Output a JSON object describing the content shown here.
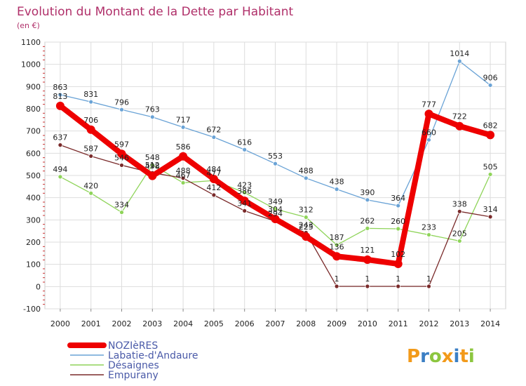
{
  "chart_data": {
    "type": "line",
    "title": "Evolution du Montant de la Dette par Habitant",
    "subtitle": "(en €)",
    "xlabel": "",
    "ylabel": "",
    "ylim": [
      -100,
      1100
    ],
    "yticks": [
      -100,
      0,
      100,
      200,
      300,
      400,
      500,
      600,
      700,
      800,
      900,
      1000,
      1100
    ],
    "categories": [
      "2000",
      "2001",
      "2002",
      "2003",
      "2004",
      "2005",
      "2006",
      "2007",
      "2008",
      "2009",
      "2010",
      "2011",
      "2012",
      "2013",
      "2014"
    ],
    "grid": true,
    "legend_position": "bottom-left",
    "series": [
      {
        "name": "Labatie-d'Andaure",
        "color": "#6aa3d6",
        "values": [
          863,
          831,
          796,
          763,
          717,
          672,
          616,
          553,
          488,
          438,
          390,
          364,
          660,
          1014,
          906
        ]
      },
      {
        "name": "Désaignes",
        "color": "#8fd45a",
        "values": [
          494,
          420,
          334,
          548,
          467,
          477,
          423,
          349,
          312,
          187,
          262,
          260,
          233,
          205,
          505
        ]
      },
      {
        "name": "Empurany",
        "color": "#7a2a2a",
        "values": [
          637,
          587,
          546,
          512,
          488,
          412,
          341,
          294,
          243,
          1,
          1,
          1,
          1,
          338,
          314
        ]
      },
      {
        "name": "NOZIèRES",
        "color": "#ee0000",
        "values": [
          813,
          706,
          597,
          498,
          586,
          484,
          386,
          304,
          225,
          136,
          121,
          102,
          777,
          722,
          682
        ]
      }
    ]
  },
  "brand": {
    "letters": [
      "P",
      "r",
      "o",
      "x",
      "i",
      "t",
      "i"
    ],
    "colors": [
      "#f29a1a",
      "#3b7fc4",
      "#8cc63f",
      "#f29a1a",
      "#3b7fc4",
      "#f29a1a",
      "#8cc63f"
    ]
  }
}
